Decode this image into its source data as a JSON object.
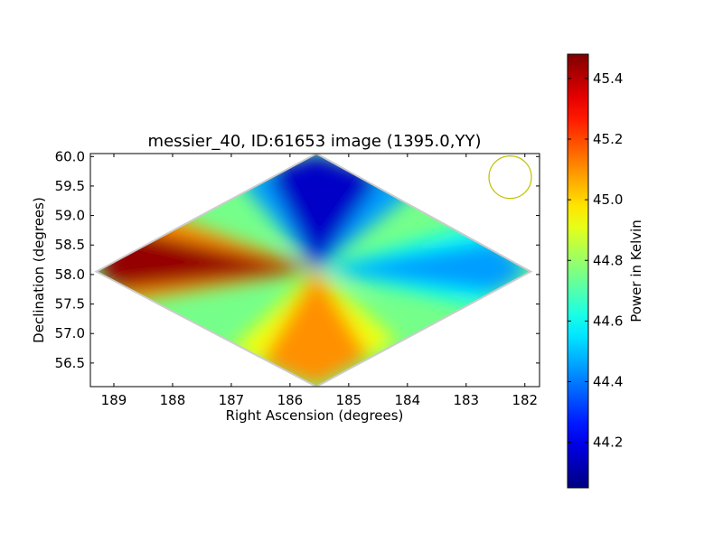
{
  "chart_data": {
    "type": "heatmap",
    "title": "messier_40, ID:61653 image (1395.0,YY)",
    "xlabel": "Right Ascension (degrees)",
    "ylabel": "Declination (degrees)",
    "xlim": [
      189.4,
      181.75
    ],
    "ylim": [
      56.1,
      60.05
    ],
    "xaxis_inverted": true,
    "x_ticks": [
      "189",
      "188",
      "187",
      "186",
      "185",
      "184",
      "183",
      "182"
    ],
    "y_ticks": [
      "56.5",
      "57.0",
      "57.5",
      "58.0",
      "58.5",
      "59.0",
      "59.5",
      "60.0"
    ],
    "x_tick_values": [
      189,
      188,
      187,
      186,
      185,
      184,
      183,
      182
    ],
    "y_tick_values": [
      56.5,
      57.0,
      57.5,
      58.0,
      58.5,
      59.0,
      59.5,
      60.0
    ],
    "center": {
      "ra": 185.55,
      "dec": 58.08
    },
    "footprint_vertices": [
      {
        "ra": 185.55,
        "dec": 60.05
      },
      {
        "ra": 181.9,
        "dec": 58.05
      },
      {
        "ra": 185.55,
        "dec": 56.1
      },
      {
        "ra": 189.3,
        "dec": 58.05
      }
    ],
    "lobes": [
      {
        "direction": "left",
        "peak_value": 45.45
      },
      {
        "direction": "top",
        "peak_value": 44.15
      },
      {
        "direction": "right",
        "peak_value": 44.45
      },
      {
        "direction": "bottom",
        "peak_value": 45.1
      }
    ],
    "background_value": 44.75,
    "beam_marker": {
      "ra": 182.25,
      "dec": 59.65,
      "color": "#bfbf00"
    },
    "colorbar": {
      "label": "Power in Kelvin",
      "min": 44.05,
      "max": 45.48,
      "ticks": [
        "44.2",
        "44.4",
        "44.6",
        "44.8",
        "45.0",
        "45.2",
        "45.4"
      ],
      "tick_values": [
        44.2,
        44.4,
        44.6,
        44.8,
        45.0,
        45.2,
        45.4
      ],
      "colormap": "jet"
    },
    "grid": false
  }
}
